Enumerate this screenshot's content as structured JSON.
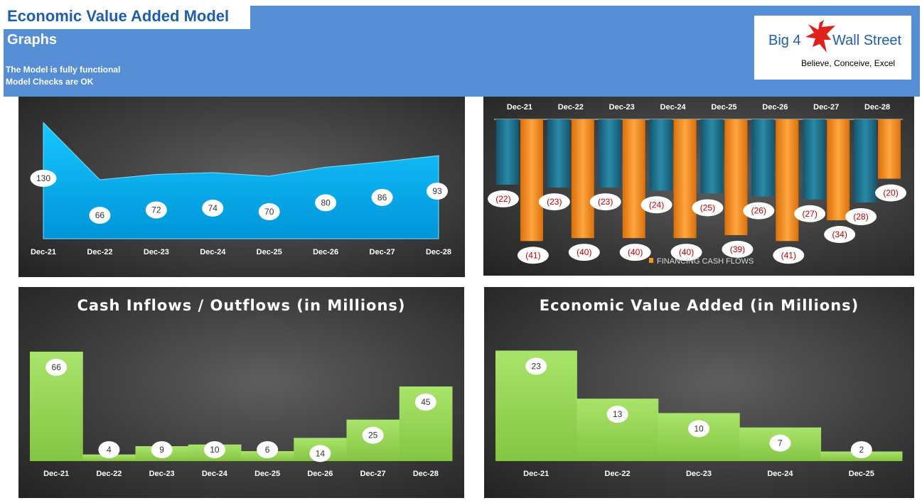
{
  "header": {
    "title": "Economic Value Added Model",
    "subtitle": "Graphs",
    "status_lines": [
      "The Model is fully functional",
      "Model Checks are OK"
    ]
  },
  "logo": {
    "left_text": "Big 4",
    "right_text": "Wall Street",
    "tagline": "Believe, Conceive, Excel",
    "icon": "eagle-icon"
  },
  "colors": {
    "header": "#558ed5",
    "area": "#00b8f5",
    "teal": "#1f6f8b",
    "orange": "#f7931e",
    "green": "#92d050",
    "label_red": "#c00000"
  },
  "chart_data": [
    {
      "type": "area",
      "title": "",
      "categories": [
        "Dec-21",
        "Dec-22",
        "Dec-23",
        "Dec-24",
        "Dec-25",
        "Dec-26",
        "Dec-27",
        "Dec-28"
      ],
      "values": [
        130,
        66,
        72,
        74,
        70,
        80,
        86,
        93
      ],
      "ylim": [
        0,
        140
      ],
      "grid": false
    },
    {
      "type": "bar",
      "title": "",
      "categories": [
        "Dec-21",
        "Dec-22",
        "Dec-23",
        "Dec-24",
        "Dec-25",
        "Dec-26",
        "Dec-27",
        "Dec-28"
      ],
      "series": [
        {
          "values": [
            -22,
            -23,
            -23,
            -24,
            -25,
            -26,
            -27,
            -28
          ]
        },
        {
          "name": "FINANCING CASH FLOWS",
          "values": [
            -41,
            -40,
            -40,
            -40,
            -39,
            -41,
            -34,
            -20
          ]
        }
      ],
      "data_labels": [
        [
          "(22)",
          "(23)",
          "(23)",
          "(24)",
          "(25)",
          "(26)",
          "(27)",
          "(28)"
        ],
        [
          "(41)",
          "(40)",
          "(40)",
          "(40)",
          "(39)",
          "(41)",
          "(34)",
          "(20)"
        ]
      ],
      "legend": "bottom",
      "ylim": [
        -45,
        0
      ]
    },
    {
      "type": "area",
      "title": "Cash Inflows / Outflows (in Millions)",
      "categories": [
        "Dec-21",
        "Dec-22",
        "Dec-23",
        "Dec-24",
        "Dec-25",
        "Dec-26",
        "Dec-27",
        "Dec-28"
      ],
      "values": [
        66,
        4,
        9,
        10,
        6,
        14,
        25,
        45
      ],
      "ylim": [
        0,
        75
      ]
    },
    {
      "type": "area",
      "title": "Economic Value Added (in Millions)",
      "categories": [
        "Dec-21",
        "Dec-22",
        "Dec-23",
        "Dec-24",
        "Dec-25"
      ],
      "values": [
        23,
        13,
        10,
        7,
        2
      ],
      "ylim": [
        0,
        25
      ]
    }
  ]
}
